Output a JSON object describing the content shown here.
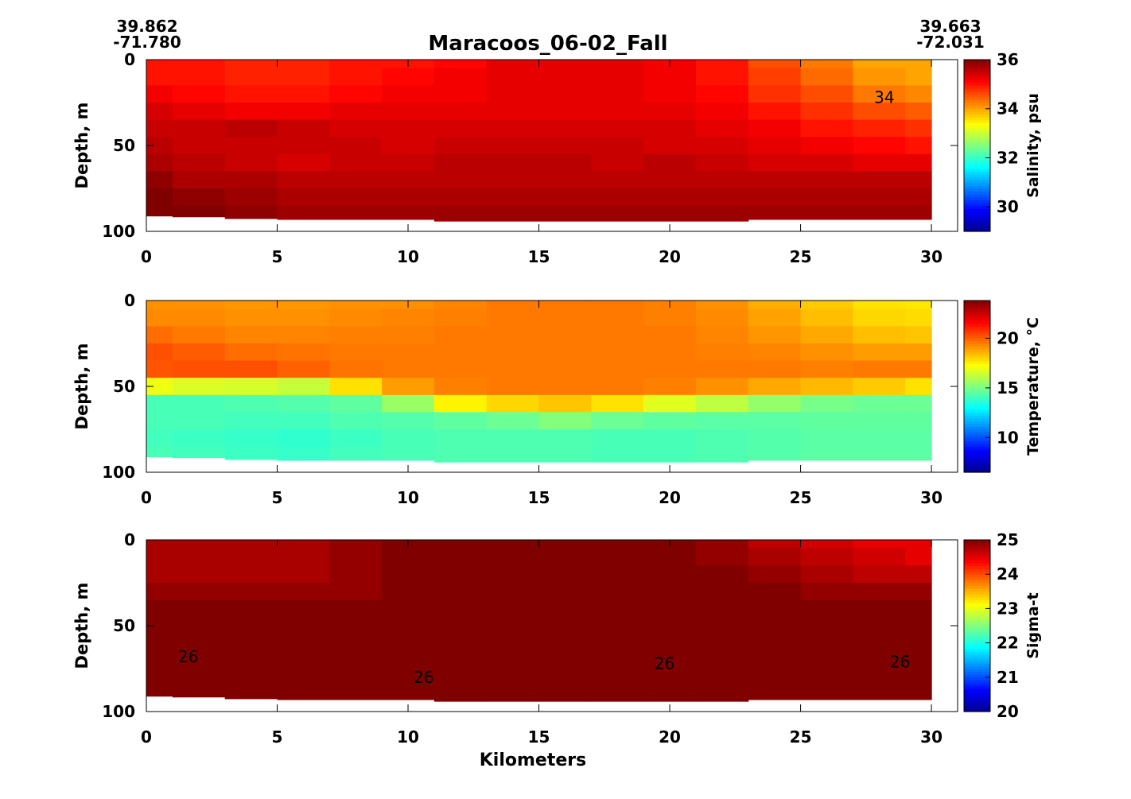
{
  "title": "Maracoos_06-02_Fall",
  "start_position": {
    "lat": "39.862",
    "lon": "-71.780"
  },
  "end_position": {
    "lat": "39.663",
    "lon": "-72.031"
  },
  "colors": {
    "colormap": [
      "#00008f",
      "#0000ff",
      "#0080ff",
      "#00ffff",
      "#80ff80",
      "#ffff00",
      "#ff8000",
      "#ff0000",
      "#800000"
    ],
    "contour_line": "#000000"
  },
  "chart_data": [
    {
      "type": "heatmap",
      "xlabel": "",
      "ylabel": "Depth, m",
      "colorbar_label": "Salinity, psu",
      "xlim": [
        0,
        31
      ],
      "ylim": [
        0,
        100
      ],
      "y_inverted": true,
      "xticks": [
        0,
        5,
        10,
        15,
        20,
        25,
        30
      ],
      "yticks": [
        0,
        50,
        100
      ],
      "clim": [
        29,
        36
      ],
      "cticks": [
        30,
        32,
        34,
        36
      ],
      "x": [
        0,
        2,
        4,
        6,
        8,
        10,
        12,
        14,
        16,
        18,
        20,
        22,
        24,
        26,
        28,
        30
      ],
      "depth": [
        0,
        10,
        20,
        30,
        40,
        50,
        60,
        70,
        80,
        90
      ],
      "bottom_depth": [
        91,
        91.5,
        92.5,
        93,
        93,
        93,
        94,
        94,
        94,
        94,
        94,
        94,
        93,
        93,
        93,
        93
      ],
      "values": [
        [
          35.0,
          35.0,
          34.9,
          34.9,
          35.0,
          35.0,
          35.1,
          35.3,
          35.3,
          35.3,
          35.2,
          35.0,
          34.6,
          34.3,
          34.0,
          34.0
        ],
        [
          35.0,
          35.0,
          34.9,
          34.9,
          35.0,
          35.1,
          35.2,
          35.3,
          35.3,
          35.3,
          35.2,
          35.0,
          34.7,
          34.4,
          34.1,
          34.0
        ],
        [
          35.2,
          35.1,
          35.0,
          35.0,
          35.1,
          35.2,
          35.2,
          35.3,
          35.3,
          35.3,
          35.2,
          35.1,
          34.8,
          34.6,
          34.3,
          34.2
        ],
        [
          35.4,
          35.3,
          35.2,
          35.2,
          35.3,
          35.3,
          35.3,
          35.3,
          35.3,
          35.3,
          35.3,
          35.2,
          35.0,
          34.8,
          34.6,
          34.5
        ],
        [
          35.5,
          35.5,
          35.6,
          35.5,
          35.4,
          35.4,
          35.4,
          35.4,
          35.4,
          35.4,
          35.4,
          35.3,
          35.2,
          35.0,
          34.9,
          34.8
        ],
        [
          35.6,
          35.5,
          35.5,
          35.5,
          35.5,
          35.4,
          35.5,
          35.5,
          35.5,
          35.5,
          35.4,
          35.4,
          35.3,
          35.2,
          35.1,
          35.0
        ],
        [
          35.7,
          35.6,
          35.5,
          35.4,
          35.5,
          35.5,
          35.6,
          35.6,
          35.6,
          35.5,
          35.6,
          35.5,
          35.4,
          35.4,
          35.3,
          35.3
        ],
        [
          35.9,
          35.7,
          35.7,
          35.6,
          35.6,
          35.6,
          35.6,
          35.6,
          35.6,
          35.6,
          35.6,
          35.6,
          35.6,
          35.6,
          35.6,
          35.6
        ],
        [
          36.0,
          35.9,
          35.8,
          35.7,
          35.7,
          35.7,
          35.7,
          35.7,
          35.7,
          35.7,
          35.7,
          35.7,
          35.7,
          35.7,
          35.7,
          35.7
        ],
        [
          36.1,
          36.0,
          35.9,
          35.8,
          35.8,
          35.8,
          35.8,
          35.8,
          35.8,
          35.8,
          35.8,
          35.8,
          35.8,
          35.8,
          35.8,
          35.8
        ]
      ],
      "contour_labels": [
        {
          "text": "34",
          "x": 28.2,
          "depth": 22
        }
      ]
    },
    {
      "type": "heatmap",
      "xlabel": "",
      "ylabel": "Depth, m",
      "colorbar_label": "Temperature, °C",
      "xlim": [
        0,
        31
      ],
      "ylim": [
        0,
        100
      ],
      "y_inverted": true,
      "xticks": [
        0,
        5,
        10,
        15,
        20,
        25,
        30
      ],
      "yticks": [
        0,
        50,
        100
      ],
      "clim": [
        6.5,
        23.8
      ],
      "cticks": [
        10,
        15,
        20
      ],
      "x": [
        0,
        2,
        4,
        6,
        8,
        10,
        12,
        14,
        16,
        18,
        20,
        22,
        24,
        26,
        28,
        30
      ],
      "depth": [
        0,
        10,
        20,
        30,
        40,
        50,
        60,
        70,
        80,
        90
      ],
      "bottom_depth": [
        91,
        91.5,
        92.5,
        93,
        93,
        93,
        94,
        94,
        94,
        94,
        94,
        94,
        93,
        93,
        93,
        93
      ],
      "values": [
        [
          19.2,
          19.2,
          19.1,
          19.1,
          19.2,
          19.2,
          19.4,
          19.6,
          19.6,
          19.6,
          19.5,
          19.2,
          18.7,
          18.2,
          17.8,
          17.7
        ],
        [
          19.3,
          19.3,
          19.2,
          19.2,
          19.3,
          19.4,
          19.5,
          19.6,
          19.6,
          19.6,
          19.5,
          19.3,
          18.9,
          18.4,
          18.0,
          17.9
        ],
        [
          19.8,
          19.6,
          19.4,
          19.4,
          19.5,
          19.5,
          19.6,
          19.6,
          19.6,
          19.6,
          19.6,
          19.4,
          19.1,
          18.8,
          18.4,
          18.3
        ],
        [
          20.3,
          20.1,
          19.8,
          19.7,
          19.6,
          19.6,
          19.6,
          19.6,
          19.6,
          19.6,
          19.6,
          19.5,
          19.4,
          19.2,
          19.0,
          19.0
        ],
        [
          20.2,
          20.3,
          20.3,
          20.0,
          19.7,
          19.6,
          19.6,
          19.6,
          19.6,
          19.6,
          19.6,
          19.6,
          19.6,
          19.5,
          19.6,
          19.6
        ],
        [
          17.0,
          16.7,
          16.6,
          16.3,
          17.8,
          19.0,
          19.5,
          19.6,
          19.6,
          19.6,
          19.5,
          19.2,
          18.8,
          18.5,
          18.2,
          17.8
        ],
        [
          14.2,
          14.2,
          14.3,
          14.4,
          14.6,
          15.6,
          17.5,
          18.0,
          18.3,
          17.8,
          16.8,
          16.2,
          15.5,
          15.0,
          14.8,
          14.8
        ],
        [
          14.2,
          14.2,
          14.1,
          14.1,
          14.3,
          14.4,
          14.6,
          14.8,
          15.2,
          14.8,
          14.6,
          14.5,
          14.5,
          14.6,
          14.6,
          14.6
        ],
        [
          14.1,
          14.0,
          13.9,
          13.8,
          14.0,
          14.2,
          14.3,
          14.3,
          14.3,
          14.2,
          14.2,
          14.3,
          14.4,
          14.5,
          14.5,
          14.5
        ],
        [
          14.2,
          14.1,
          14.0,
          13.9,
          14.1,
          14.2,
          14.3,
          14.3,
          14.3,
          14.2,
          14.2,
          14.3,
          14.4,
          14.5,
          14.5,
          14.5
        ]
      ],
      "contour_labels": []
    },
    {
      "type": "heatmap",
      "xlabel": "Kilometers",
      "ylabel": "Depth, m",
      "colorbar_label": "Sigma-t",
      "xlim": [
        0,
        31
      ],
      "ylim": [
        0,
        100
      ],
      "y_inverted": true,
      "xticks": [
        0,
        5,
        10,
        15,
        20,
        25,
        30
      ],
      "yticks": [
        0,
        50,
        100
      ],
      "clim": [
        20,
        25
      ],
      "cticks": [
        20,
        21,
        22,
        23,
        24,
        25
      ],
      "x": [
        0,
        2,
        4,
        6,
        8,
        10,
        12,
        14,
        16,
        18,
        20,
        22,
        24,
        26,
        28,
        30
      ],
      "depth": [
        0,
        10,
        20,
        30,
        40,
        50,
        60,
        70,
        80,
        90
      ],
      "bottom_depth": [
        91,
        91.5,
        92.5,
        93,
        93,
        93,
        94,
        94,
        94,
        94,
        94,
        94,
        93,
        93,
        93,
        93
      ],
      "values": [
        [
          24.8,
          24.8,
          24.8,
          24.8,
          24.9,
          25.0,
          25.1,
          25.2,
          25.2,
          25.2,
          25.1,
          24.9,
          24.7,
          24.6,
          24.5,
          24.5
        ],
        [
          24.8,
          24.8,
          24.8,
          24.8,
          24.9,
          25.0,
          25.1,
          25.2,
          25.2,
          25.2,
          25.1,
          24.9,
          24.8,
          24.7,
          24.6,
          24.5
        ],
        [
          24.8,
          24.8,
          24.8,
          24.8,
          24.9,
          25.0,
          25.1,
          25.2,
          25.2,
          25.2,
          25.1,
          25.0,
          24.9,
          24.8,
          24.7,
          24.7
        ],
        [
          24.9,
          24.9,
          24.9,
          24.9,
          24.9,
          25.0,
          25.1,
          25.2,
          25.2,
          25.2,
          25.1,
          25.0,
          25.0,
          24.9,
          24.9,
          24.9
        ],
        [
          25.0,
          25.0,
          25.0,
          25.0,
          25.0,
          25.1,
          25.1,
          25.2,
          25.2,
          25.2,
          25.1,
          25.1,
          25.1,
          25.0,
          25.0,
          25.0
        ],
        [
          25.6,
          25.6,
          25.7,
          25.6,
          25.4,
          25.3,
          25.2,
          25.2,
          25.2,
          25.2,
          25.2,
          25.2,
          25.2,
          25.2,
          25.2,
          25.3
        ],
        [
          25.9,
          25.9,
          25.9,
          25.9,
          25.9,
          25.8,
          25.6,
          25.5,
          25.4,
          25.5,
          25.7,
          25.8,
          25.8,
          25.9,
          25.9,
          25.9
        ],
        [
          26.0,
          26.0,
          25.9,
          25.9,
          25.9,
          25.9,
          25.9,
          25.9,
          25.9,
          25.9,
          25.9,
          26.0,
          26.0,
          26.0,
          26.0,
          26.0
        ],
        [
          26.1,
          26.1,
          26.1,
          26.1,
          26.0,
          26.0,
          26.0,
          26.0,
          26.0,
          26.0,
          26.1,
          26.1,
          26.1,
          26.1,
          26.1,
          26.1
        ],
        [
          26.2,
          26.2,
          26.2,
          26.2,
          26.1,
          26.1,
          26.1,
          26.1,
          26.1,
          26.1,
          26.1,
          26.2,
          26.2,
          26.2,
          26.2,
          26.2
        ]
      ],
      "contour_labels": [
        {
          "text": "26",
          "x": 1.6,
          "depth": 68
        },
        {
          "text": "26",
          "x": 10.6,
          "depth": 80
        },
        {
          "text": "26",
          "x": 19.8,
          "depth": 72
        },
        {
          "text": "26",
          "x": 28.8,
          "depth": 71
        }
      ]
    }
  ]
}
